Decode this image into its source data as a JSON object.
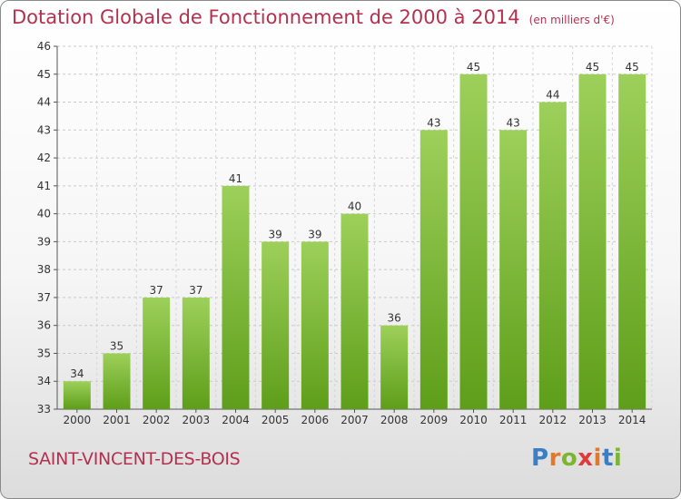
{
  "header": {
    "title": "Dotation Globale de Fonctionnement de 2000 à 2014",
    "unit": "(en milliers d'€)"
  },
  "footer": {
    "commune": "SAINT-VINCENT-DES-BOIS",
    "brand": "Proxiti"
  },
  "colors": {
    "title": "#b3314f",
    "bar_top": "#9dd05a",
    "bar_bottom": "#5e9e1a"
  },
  "chart_data": {
    "type": "bar",
    "title": "Dotation Globale de Fonctionnement de 2000 à 2014",
    "subtitle": "(en milliers d'€)",
    "xlabel": "",
    "ylabel": "",
    "categories": [
      "2000",
      "2001",
      "2002",
      "2003",
      "2004",
      "2005",
      "2006",
      "2007",
      "2008",
      "2009",
      "2010",
      "2011",
      "2012",
      "2013",
      "2014"
    ],
    "values": [
      34,
      35,
      37,
      37,
      41,
      39,
      39,
      40,
      36,
      43,
      45,
      43,
      44,
      45,
      45
    ],
    "ylim": [
      33,
      46
    ],
    "yticks": [
      33,
      34,
      35,
      36,
      37,
      38,
      39,
      40,
      41,
      42,
      43,
      44,
      45,
      46
    ],
    "grid": true,
    "data_labels": true
  }
}
